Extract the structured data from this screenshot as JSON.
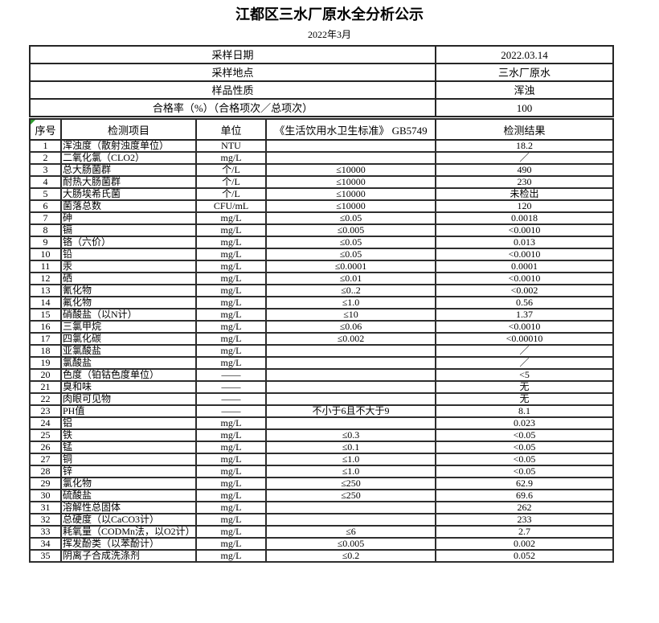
{
  "title": "江都区三水厂原水全分析公示",
  "subtitle": "2022年3月",
  "colors": {
    "background": "#ffffff",
    "text": "#000000",
    "grid_border": "#2e2e2e",
    "corner_marker_green": "#2f9e30"
  },
  "info": {
    "rows": [
      {
        "label": "采样日期",
        "value": "2022.03.14"
      },
      {
        "label": "采样地点",
        "value": "三水厂原水"
      },
      {
        "label": "样品性质",
        "value": "浑浊"
      },
      {
        "label": "合格率（%）（合格项次／总项次）",
        "value": "100"
      }
    ]
  },
  "table": {
    "columns": [
      "序号",
      "检测项目",
      "单位",
      "《生活饮用水卫生标准》 GB5749",
      "检测结果"
    ],
    "rows": [
      {
        "no": "1",
        "item": "浑浊度（散射浊度单位）",
        "unit": "NTU",
        "standard": "",
        "result": "18.2"
      },
      {
        "no": "2",
        "item": "二氧化氯（CLO2）",
        "unit": "mg/L",
        "standard": "",
        "result": "／"
      },
      {
        "no": "3",
        "item": "总大肠菌群",
        "unit": "个/L",
        "standard": "≤10000",
        "result": "490"
      },
      {
        "no": "4",
        "item": "耐热大肠菌群",
        "unit": "个/L",
        "standard": "≤10000",
        "result": "230"
      },
      {
        "no": "5",
        "item": "大肠埃希氏菌",
        "unit": "个/L",
        "standard": "≤10000",
        "result": "未检出"
      },
      {
        "no": "6",
        "item": "菌落总数",
        "unit": "CFU/mL",
        "standard": "≤10000",
        "result": "120"
      },
      {
        "no": "7",
        "item": "砷",
        "unit": "mg/L",
        "standard": "≤0.05",
        "result": "0.0018"
      },
      {
        "no": "8",
        "item": "镉",
        "unit": "mg/L",
        "standard": "≤0.005",
        "result": "<0.0010"
      },
      {
        "no": "9",
        "item": "铬（六价）",
        "unit": "mg/L",
        "standard": "≤0.05",
        "result": "0.013"
      },
      {
        "no": "10",
        "item": "铅",
        "unit": "mg/L",
        "standard": "≤0.05",
        "result": "<0.0010"
      },
      {
        "no": "11",
        "item": "汞",
        "unit": "mg/L",
        "standard": "≤0.0001",
        "result": "0.0001"
      },
      {
        "no": "12",
        "item": "硒",
        "unit": "mg/L",
        "standard": "≤0.01",
        "result": "<0.0010"
      },
      {
        "no": "13",
        "item": "氰化物",
        "unit": "mg/L",
        "standard": "≤0..2",
        "result": "<0.002"
      },
      {
        "no": "14",
        "item": "氟化物",
        "unit": "mg/L",
        "standard": "≤1.0",
        "result": "0.56"
      },
      {
        "no": "15",
        "item": "硝酸盐（以N计）",
        "unit": "mg/L",
        "standard": "≤10",
        "result": "1.37"
      },
      {
        "no": "16",
        "item": "三氯甲烷",
        "unit": "mg/L",
        "standard": "≤0.06",
        "result": "<0.0010"
      },
      {
        "no": "17",
        "item": "四氯化碳",
        "unit": "mg/L",
        "standard": "≤0.002",
        "result": "<0.00010"
      },
      {
        "no": "18",
        "item": "亚氯酸盐",
        "unit": "mg/L",
        "standard": "",
        "result": "／"
      },
      {
        "no": "19",
        "item": "氯酸盐",
        "unit": "mg/L",
        "standard": "",
        "result": "／"
      },
      {
        "no": "20",
        "item": "色度（铂钴色度单位）",
        "unit": "——",
        "standard": "",
        "result": "<5"
      },
      {
        "no": "21",
        "item": "臭和味",
        "unit": "——",
        "standard": "",
        "result": "无"
      },
      {
        "no": "22",
        "item": "肉眼可见物",
        "unit": "——",
        "standard": "",
        "result": "无"
      },
      {
        "no": "23",
        "item": "PH值",
        "unit": "——",
        "standard": "不小于6且不大于9",
        "result": "8.1"
      },
      {
        "no": "24",
        "item": "铝",
        "unit": "mg/L",
        "standard": "",
        "result": "0.023"
      },
      {
        "no": "25",
        "item": "铁",
        "unit": "mg/L",
        "standard": "≤0.3",
        "result": "<0.05"
      },
      {
        "no": "26",
        "item": "锰",
        "unit": "mg/L",
        "standard": "≤0.1",
        "result": "<0.05"
      },
      {
        "no": "27",
        "item": "铜",
        "unit": "mg/L",
        "standard": "≤1.0",
        "result": "<0.05"
      },
      {
        "no": "28",
        "item": "锌",
        "unit": "mg/L",
        "standard": "≤1.0",
        "result": "<0.05"
      },
      {
        "no": "29",
        "item": "氯化物",
        "unit": "mg/L",
        "standard": "≤250",
        "result": "62.9"
      },
      {
        "no": "30",
        "item": "硫酸盐",
        "unit": "mg/L",
        "standard": "≤250",
        "result": "69.6"
      },
      {
        "no": "31",
        "item": "溶解性总固体",
        "unit": "mg/L",
        "standard": "",
        "result": "262"
      },
      {
        "no": "32",
        "item": "总硬度（以CaCO3计）",
        "unit": "mg/L",
        "standard": "",
        "result": "233"
      },
      {
        "no": "33",
        "item": "耗氧量（CODMn法，以O2计）",
        "unit": "mg/L",
        "standard": "≤6",
        "result": "2.7"
      },
      {
        "no": "34",
        "item": "挥发酚类（以苯酚计）",
        "unit": "mg/L",
        "standard": "≤0.005",
        "result": "0.002"
      },
      {
        "no": "35",
        "item": "阴离子合成洗涤剂",
        "unit": "mg/L",
        "standard": "≤0.2",
        "result": "0.052"
      }
    ]
  }
}
